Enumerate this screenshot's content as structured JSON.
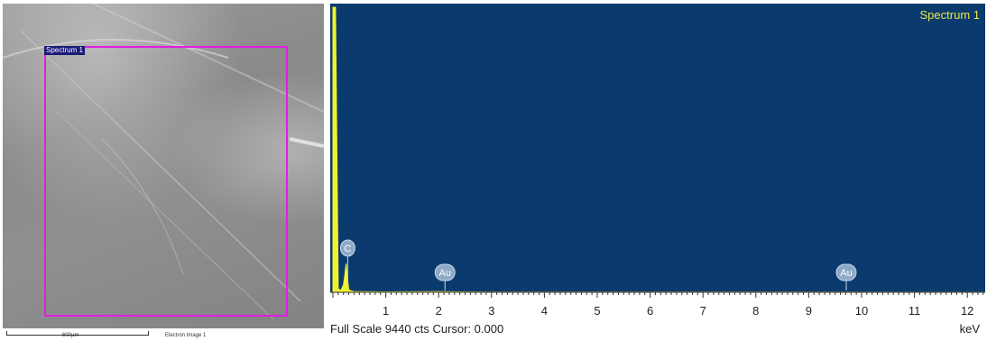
{
  "sem": {
    "region_label": "Spectrum 1",
    "scale_bar_label": "600µm",
    "image_caption": "Electron Image 1",
    "roi_color": "#e11ee1"
  },
  "spectrum": {
    "title": "Spectrum 1",
    "footer": "Full Scale 9440 cts Cursor: 0.000",
    "unit": "keV",
    "background_color": "#0b3a6e",
    "peak_color": "#f2f230"
  },
  "chart_data": {
    "type": "area",
    "title": "Spectrum 1",
    "xlabel": "keV",
    "ylabel": "",
    "xlim": [
      0,
      12.4
    ],
    "ylim": [
      0,
      9440
    ],
    "x_ticks": [
      1,
      2,
      3,
      4,
      5,
      6,
      7,
      8,
      9,
      10,
      11,
      12
    ],
    "series": [
      {
        "x": [
          0.0,
          0.05,
          0.1,
          0.15,
          0.2,
          0.22,
          0.25,
          0.28,
          0.3,
          0.4,
          1.0,
          2.0,
          3.0,
          6.0,
          9.0,
          12.4
        ],
        "y": [
          9440,
          9440,
          120,
          60,
          250,
          500,
          950,
          400,
          80,
          20,
          15,
          20,
          10,
          5,
          5,
          3
        ]
      }
    ],
    "annotations": [
      {
        "label": "C",
        "x": 0.28
      },
      {
        "label": "Au",
        "x": 2.12
      },
      {
        "label": "Au",
        "x": 9.71
      }
    ]
  }
}
